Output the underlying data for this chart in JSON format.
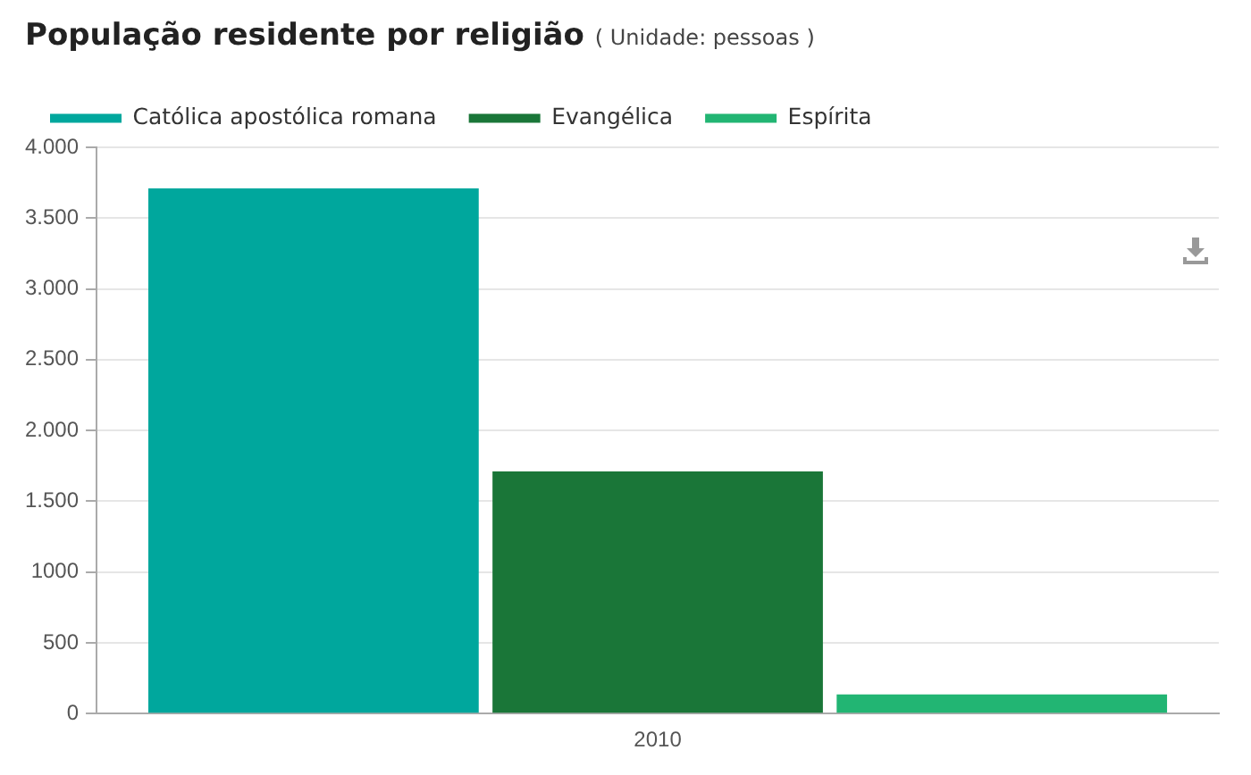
{
  "chart_data": {
    "type": "bar",
    "title": "População residente por religião",
    "subtitle": "( Unidade: pessoas )",
    "categories": [
      "2010"
    ],
    "series": [
      {
        "name": "Católica apostólica romana",
        "color": "#00a79d",
        "values": [
          3710
        ]
      },
      {
        "name": "Evangélica",
        "color": "#1a7638",
        "values": [
          1710
        ]
      },
      {
        "name": "Espírita",
        "color": "#22b573",
        "values": [
          136
        ]
      }
    ],
    "ylim": [
      0,
      4000
    ],
    "yticks": [
      0,
      500,
      1000,
      {
        "value": 1500,
        "label": "1.500"
      },
      {
        "value": 2000,
        "label": "2.000"
      },
      {
        "value": 2500,
        "label": "2.500"
      },
      {
        "value": 3000,
        "label": "3.000"
      },
      {
        "value": 3500,
        "label": "3.500"
      },
      {
        "value": 4000,
        "label": "4.000"
      }
    ],
    "grid": "y",
    "legend": "top left"
  }
}
